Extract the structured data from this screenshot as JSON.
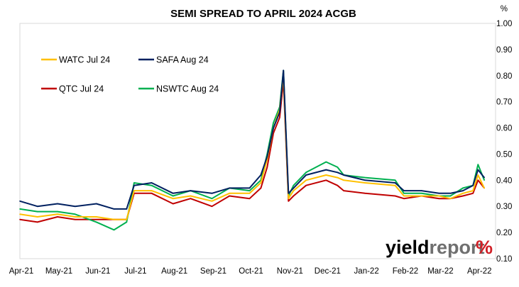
{
  "chart_data": {
    "type": "line",
    "title": "SEMI SPREAD TO APRIL 2024 ACGB",
    "unit": "%",
    "ylim": [
      0.1,
      1.0
    ],
    "yticks": [
      "1.00",
      "0.90",
      "0.80",
      "0.70",
      "0.60",
      "0.50",
      "0.40",
      "0.30",
      "0.20",
      "0.10"
    ],
    "ytick_values": [
      1.0,
      0.9,
      0.8,
      0.7,
      0.6,
      0.5,
      0.4,
      0.3,
      0.2,
      0.1
    ],
    "grid": false,
    "legend_position": "top-left",
    "xticks": [
      "Apr-21",
      "May-21",
      "Jun-21",
      "Jul-21",
      "Aug-21",
      "Sep-21",
      "Oct-21",
      "Nov-21",
      "Dec-21",
      "Jan-22",
      "Feb-22",
      "Mar-22",
      "Apr-22"
    ],
    "x": [
      "2021-04-01",
      "2021-04-15",
      "2021-05-01",
      "2021-05-15",
      "2021-06-01",
      "2021-06-15",
      "2021-06-25",
      "2021-07-01",
      "2021-07-15",
      "2021-08-01",
      "2021-08-15",
      "2021-09-01",
      "2021-09-15",
      "2021-10-01",
      "2021-10-10",
      "2021-10-15",
      "2021-10-20",
      "2021-10-25",
      "2021-10-28",
      "2021-11-01",
      "2021-11-05",
      "2021-11-15",
      "2021-12-01",
      "2021-12-10",
      "2021-12-15",
      "2022-01-01",
      "2022-01-25",
      "2022-02-01",
      "2022-02-15",
      "2022-03-01",
      "2022-03-10",
      "2022-03-20",
      "2022-03-28",
      "2022-04-01",
      "2022-04-06"
    ],
    "series": [
      {
        "name": "WATC Jul 24",
        "color": "#FFC000",
        "values": [
          0.27,
          0.26,
          0.27,
          0.26,
          0.26,
          0.25,
          0.25,
          0.36,
          0.36,
          0.33,
          0.34,
          0.32,
          0.35,
          0.35,
          0.39,
          0.48,
          0.6,
          0.67,
          0.8,
          0.33,
          0.36,
          0.4,
          0.42,
          0.41,
          0.4,
          0.39,
          0.38,
          0.34,
          0.34,
          0.34,
          0.33,
          0.35,
          0.36,
          0.42,
          0.37
        ]
      },
      {
        "name": "SAFA Aug 24",
        "color": "#002060",
        "values": [
          0.32,
          0.3,
          0.31,
          0.3,
          0.31,
          0.29,
          0.29,
          0.38,
          0.39,
          0.35,
          0.36,
          0.35,
          0.37,
          0.37,
          0.42,
          0.49,
          0.6,
          0.66,
          0.82,
          0.35,
          0.37,
          0.42,
          0.44,
          0.43,
          0.42,
          0.4,
          0.39,
          0.36,
          0.36,
          0.35,
          0.35,
          0.36,
          0.38,
          0.44,
          0.41
        ]
      },
      {
        "name": "QTC Jul 24",
        "color": "#C00000",
        "values": [
          0.25,
          0.24,
          0.26,
          0.25,
          0.25,
          0.25,
          0.25,
          0.35,
          0.35,
          0.31,
          0.33,
          0.3,
          0.34,
          0.33,
          0.37,
          0.45,
          0.58,
          0.64,
          0.78,
          0.32,
          0.34,
          0.38,
          0.4,
          0.38,
          0.36,
          0.35,
          0.34,
          0.33,
          0.34,
          0.33,
          0.33,
          0.34,
          0.35,
          0.4,
          0.37
        ]
      },
      {
        "name": "NSWTC Aug 24",
        "color": "#00B050",
        "values": [
          0.29,
          0.28,
          0.28,
          0.27,
          0.24,
          0.21,
          0.24,
          0.39,
          0.38,
          0.34,
          0.36,
          0.33,
          0.37,
          0.36,
          0.4,
          0.5,
          0.62,
          0.68,
          0.82,
          0.34,
          0.38,
          0.43,
          0.47,
          0.45,
          0.42,
          0.41,
          0.4,
          0.35,
          0.35,
          0.34,
          0.34,
          0.37,
          0.38,
          0.46,
          0.4
        ]
      }
    ]
  },
  "brand": {
    "text_main": "yield",
    "text_rest": "report",
    "symbol": "%",
    "color_main": "#000000",
    "color_rest": "#6f6f6f",
    "symbol_colors": [
      "#1a9e4b",
      "#d11f26"
    ]
  }
}
